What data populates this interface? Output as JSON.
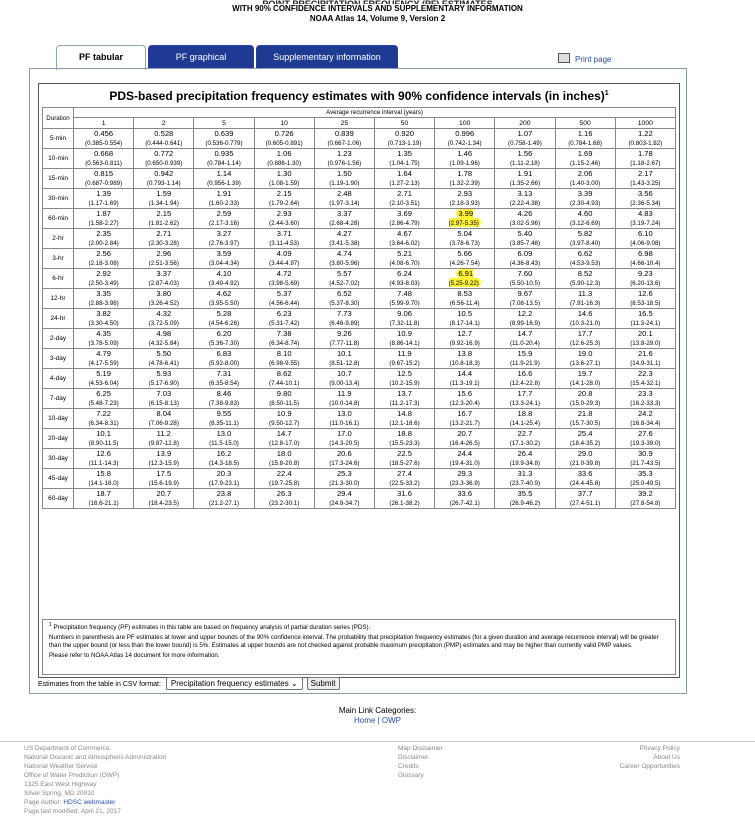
{
  "header": {
    "clipped_title": "POINT PRECIPITATION FREQUENCY (PF) ESTIMATES",
    "line1": "WITH 90% CONFIDENCE INTERVALS AND SUPPLEMENTARY INFORMATION",
    "line2": "NOAA Atlas 14, Volume 9, Version 2"
  },
  "tabs": [
    {
      "label": "PF tabular"
    },
    {
      "label": "PF graphical"
    },
    {
      "label": "Supplementary information"
    }
  ],
  "print_label": "Print page",
  "table": {
    "title": "PDS-based precipitation frequency estimates with 90% confidence intervals (in inches)",
    "title_sup": "1",
    "duration_label": "Duration",
    "ari_label": "Average recurrence interval (years)",
    "ari": [
      "1",
      "2",
      "5",
      "10",
      "25",
      "50",
      "100",
      "200",
      "500",
      "1000"
    ],
    "rows": [
      {
        "d": "5-min",
        "v": [
          "0.456",
          "0.528",
          "0.639",
          "0.726",
          "0.839",
          "0.920",
          "0.996",
          "1.07",
          "1.16",
          "1.22"
        ],
        "c": [
          "(0.385-0.554)",
          "(0.444-0.641)",
          "(0.536-0.779)",
          "(0.605-0.891)",
          "(0.667-1.06)",
          "(0.713-1.19)",
          "(0.742-1.34)",
          "(0.758-1.49)",
          "(0.784-1.68)",
          "(0.803-1.82)"
        ]
      },
      {
        "d": "10-min",
        "v": [
          "0.668",
          "0.772",
          "0.935",
          "1.06",
          "1.23",
          "1.35",
          "1.46",
          "1.56",
          "1.69",
          "1.78"
        ],
        "c": [
          "(0.563-0.811)",
          "(0.650-0.939)",
          "(0.784-1.14)",
          "(0.886-1.30)",
          "(0.976-1.56)",
          "(1.04-1.75)",
          "(1.09-1.96)",
          "(1.11-2.18)",
          "(1.15-2.46)",
          "(1.18-2.67)"
        ]
      },
      {
        "d": "15-min",
        "v": [
          "0.815",
          "0.942",
          "1.14",
          "1.30",
          "1.50",
          "1.64",
          "1.78",
          "1.91",
          "2.06",
          "2.17"
        ],
        "c": [
          "(0.687-0.989)",
          "(0.793-1.14)",
          "(0.956-1.39)",
          "(1.08-1.59)",
          "(1.19-1.90)",
          "(1.27-2.13)",
          "(1.32-2.39)",
          "(1.35-2.66)",
          "(1.40-3.00)",
          "(1.43-3.25)"
        ]
      },
      {
        "d": "30-min",
        "v": [
          "1.39",
          "1.59",
          "1.91",
          "2.15",
          "2.48",
          "2.71",
          "2.93",
          "3.13",
          "3.39",
          "3.56"
        ],
        "c": [
          "(1.17-1.69)",
          "(1.34-1.94)",
          "(1.60-2.33)",
          "(1.79-2.64)",
          "(1.97-3.14)",
          "(2.10-3.51)",
          "(2.18-3.93)",
          "(2.22-4.38)",
          "(2.30-4.93)",
          "(2.36-5.34)"
        ]
      },
      {
        "d": "60-min",
        "v": [
          "1.87",
          "2.15",
          "2.59",
          "2.93",
          "3.37",
          "3.69",
          "3.99",
          "4.26",
          "4.60",
          "4.83"
        ],
        "c": [
          "(1.58-2.27)",
          "(1.81-2.62)",
          "(2.17-3.16)",
          "(2.44-3.60)",
          "(2.68-4.28)",
          "(2.86-4.79)",
          "(2.97-5.35)",
          "(3.02-5.96)",
          "(3.12-6.69)",
          "(3.19-7.24)"
        ]
      },
      {
        "d": "2-hr",
        "v": [
          "2.35",
          "2.71",
          "3.27",
          "3.71",
          "4.27",
          "4.67",
          "5.04",
          "5.40",
          "5.82",
          "6.10"
        ],
        "c": [
          "(2.00-2.84)",
          "(2.30-3.28)",
          "(2.76-3.97)",
          "(3.11-4.53)",
          "(3.41-5.38)",
          "(3.64-6.02)",
          "(3.78-6.73)",
          "(3.85-7.48)",
          "(3.97-8.40)",
          "(4.06-9.08)"
        ]
      },
      {
        "d": "3-hr",
        "v": [
          "2.56",
          "2.96",
          "3.59",
          "4.09",
          "4.74",
          "5.21",
          "5.66",
          "6.09",
          "6.62",
          "6.98"
        ],
        "c": [
          "(2.18-3.08)",
          "(2.51-3.56)",
          "(3.04-4.34)",
          "(3.44-4.97)",
          "(3.80-5.96)",
          "(4.08-6.70)",
          "(4.26-7.54)",
          "(4.36-8.43)",
          "(4.53-9.53)",
          "(4.66-10.4)"
        ]
      },
      {
        "d": "6-hr",
        "v": [
          "2.92",
          "3.37",
          "4.10",
          "4.72",
          "5.57",
          "6.24",
          "6.91",
          "7.60",
          "8.52",
          "9.23"
        ],
        "c": [
          "(2.50-3.49)",
          "(2.87-4.03)",
          "(3.49-4.92)",
          "(3.98-5.69)",
          "(4.52-7.02)",
          "(4.93-8.03)",
          "(5.25-9.22)",
          "(5.50-10.5)",
          "(5.90-12.3)",
          "(6.20-13.6)"
        ]
      },
      {
        "d": "12-hr",
        "v": [
          "3.35",
          "3.80",
          "4.62",
          "5.37",
          "6.52",
          "7.48",
          "8.53",
          "9.67",
          "11.3",
          "12.6"
        ],
        "c": [
          "(2.88-3.98)",
          "(3.26-4.52)",
          "(3.95-5.50)",
          "(4.56-6.44)",
          "(5.37-8.30)",
          "(5.99-9.70)",
          "(6.56-11.4)",
          "(7.08-13.5)",
          "(7.91-16.3)",
          "(8.53-18.5)"
        ]
      },
      {
        "d": "24-hr",
        "v": [
          "3.82",
          "4.32",
          "5.28",
          "6.23",
          "7.73",
          "9.06",
          "10.5",
          "12.2",
          "14.6",
          "16.5"
        ],
        "c": [
          "(3.30-4.50)",
          "(3.72-5.09)",
          "(4.54-6.26)",
          "(5.31-7.42)",
          "(6.46-9.89)",
          "(7.32-11.8)",
          "(8.17-14.1)",
          "(8.99-16.9)",
          "(10.3-21.0)",
          "(11.3-24.1)"
        ]
      },
      {
        "d": "2-day",
        "v": [
          "4.35",
          "4.98",
          "6.20",
          "7.38",
          "9.26",
          "10.9",
          "12.7",
          "14.7",
          "17.7",
          "20.1"
        ],
        "c": [
          "(3.78-5.09)",
          "(4.32-5.84)",
          "(5.36-7.30)",
          "(6.34-8.74)",
          "(7.77-11.8)",
          "(8.86-14.1)",
          "(9.92-16.9)",
          "(11.0-20.4)",
          "(12.6-25.3)",
          "(13.8-29.0)"
        ]
      },
      {
        "d": "3-day",
        "v": [
          "4.79",
          "5.50",
          "6.83",
          "8.10",
          "10.1",
          "11.9",
          "13.8",
          "15.9",
          "19.0",
          "21.6"
        ],
        "c": [
          "(4.17-5.59)",
          "(4.78-6.41)",
          "(5.92-8.00)",
          "(6.98-9.55)",
          "(8.51-12.8)",
          "(9.67-15.2)",
          "(10.8-18.3)",
          "(11.9-21.9)",
          "(13.6-27.1)",
          "(14.9-31.1)"
        ]
      },
      {
        "d": "4-day",
        "v": [
          "5.19",
          "5.93",
          "7.31",
          "8.62",
          "10.7",
          "12.5",
          "14.4",
          "16.6",
          "19.7",
          "22.3"
        ],
        "c": [
          "(4.53-6.04)",
          "(5.17-6.90)",
          "(6.35-8.54)",
          "(7.44-10.1)",
          "(9.00-13.4)",
          "(10.2-15.9)",
          "(11.3-19.1)",
          "(12.4-22.8)",
          "(14.1-28.0)",
          "(15.4-32.1)"
        ]
      },
      {
        "d": "7-day",
        "v": [
          "6.25",
          "7.03",
          "8.46",
          "9.80",
          "11.9",
          "13.7",
          "15.6",
          "17.7",
          "20.8",
          "23.3"
        ],
        "c": [
          "(5.48-7.23)",
          "(6.15-8.13)",
          "(7.38-9.83)",
          "(8.50-11.5)",
          "(10.0-14.8)",
          "(11.2-17.3)",
          "(12.3-20.4)",
          "(13.3-24.1)",
          "(15.0-29.3)",
          "(16.2-33.3)"
        ]
      },
      {
        "d": "10-day",
        "v": [
          "7.22",
          "8.04",
          "9.55",
          "10.9",
          "13.0",
          "14.8",
          "16.7",
          "18.8",
          "21.8",
          "24.2"
        ],
        "c": [
          "(6.34-8.31)",
          "(7.06-9.28)",
          "(8.35-11.1)",
          "(9.50-12.7)",
          "(11.0-16.1)",
          "(12.1-18.6)",
          "(13.2-21.7)",
          "(14.1-25.4)",
          "(15.7-30.5)",
          "(16.8-34.4)"
        ]
      },
      {
        "d": "20-day",
        "v": [
          "10.1",
          "11.2",
          "13.0",
          "14.7",
          "17.0",
          "18.8",
          "20.7",
          "22.7",
          "25.4",
          "27.6"
        ],
        "c": [
          "(8.90-11.5)",
          "(9.87-12.8)",
          "(11.5-15.0)",
          "(12.8-17.0)",
          "(14.3-20.5)",
          "(15.5-23.3)",
          "(16.4-26.5)",
          "(17.1-30.2)",
          "(18.4-35.2)",
          "(19.3-39.0)"
        ]
      },
      {
        "d": "30-day",
        "v": [
          "12.6",
          "13.9",
          "16.2",
          "18.0",
          "20.6",
          "22.5",
          "24.4",
          "26.4",
          "29.0",
          "30.9"
        ],
        "c": [
          "(11.1-14.3)",
          "(12.3-15.9)",
          "(14.3-18.5)",
          "(15.8-20.8)",
          "(17.3-24.6)",
          "(18.5-27.6)",
          "(19.4-31.0)",
          "(19.9-34.8)",
          "(21.0-39.8)",
          "(21.7-43.5)"
        ]
      },
      {
        "d": "45-day",
        "v": [
          "15.8",
          "17.5",
          "20.3",
          "22.4",
          "25.3",
          "27.4",
          "29.3",
          "31.3",
          "33.6",
          "35.3"
        ],
        "c": [
          "(14.1-18.0)",
          "(15.6-19.9)",
          "(17.9-23.1)",
          "(19.7-25.8)",
          "(21.3-30.0)",
          "(22.5-33.2)",
          "(23.3-36.9)",
          "(23.7-40.9)",
          "(24.4-45.8)",
          "(25.0-49.5)"
        ]
      },
      {
        "d": "60-day",
        "v": [
          "18.7",
          "20.7",
          "23.8",
          "26.3",
          "29.4",
          "31.6",
          "33.6",
          "35.5",
          "37.7",
          "39.2"
        ],
        "c": [
          "(16.6-21.1)",
          "(18.4-23.5)",
          "(21.2-27.1)",
          "(23.2-30.1)",
          "(24.8-34.7)",
          "(26.1-38.2)",
          "(26.7-42.1)",
          "(26.9-46.2)",
          "(27.4-51.1)",
          "(27.8-54.8)"
        ]
      }
    ],
    "highlighted": [
      "60-min|100",
      "6-hr|100"
    ]
  },
  "notes": {
    "n1_sup": "1",
    "n1": " Precipitation frequency (PF) estimates in this table are based on frequency analysis of partial duration series (PDS).",
    "n2": "Numbers in parenthesis are PF estimates at lower and upper bounds of the 90% confidence interval. The probability that precipitation frequency estimates (for a given duration and average recurrence interval) will be greater than the upper bound (or less than the lower bound) is 5%. Estimates at upper bounds are not checked against probable maximum precipitation (PMP) estimates and may be higher than currently valid PMP values.",
    "n3": "Please refer to NOAA Atlas 14 document for more information."
  },
  "csv": {
    "label": "Estimates from the table in CSV format:",
    "selected": "Precipitation frequency estimates",
    "submit": "Submit"
  },
  "main_links": {
    "title": "Main Link Categories:",
    "home": "Home",
    "sep": " | ",
    "owp": "OWP"
  },
  "footer": {
    "col1": [
      "US Department of Commerce",
      "National Oceanic and Atmospheric Administration",
      "National Weather Service",
      "Office of Water Prediction (OWP)",
      "1325 East West Highway",
      "Silver Spring, MD 20910"
    ],
    "author_label": "Page Author: ",
    "author_link": "HDSC webmaster",
    "modified": "Page last modified: April 21, 2017",
    "col2": [
      "Map Disclaimer",
      "Disclaimer",
      "Credits",
      "Glossary"
    ],
    "col3": [
      "Privacy Policy",
      "About Us",
      "Career Opportunities"
    ]
  }
}
